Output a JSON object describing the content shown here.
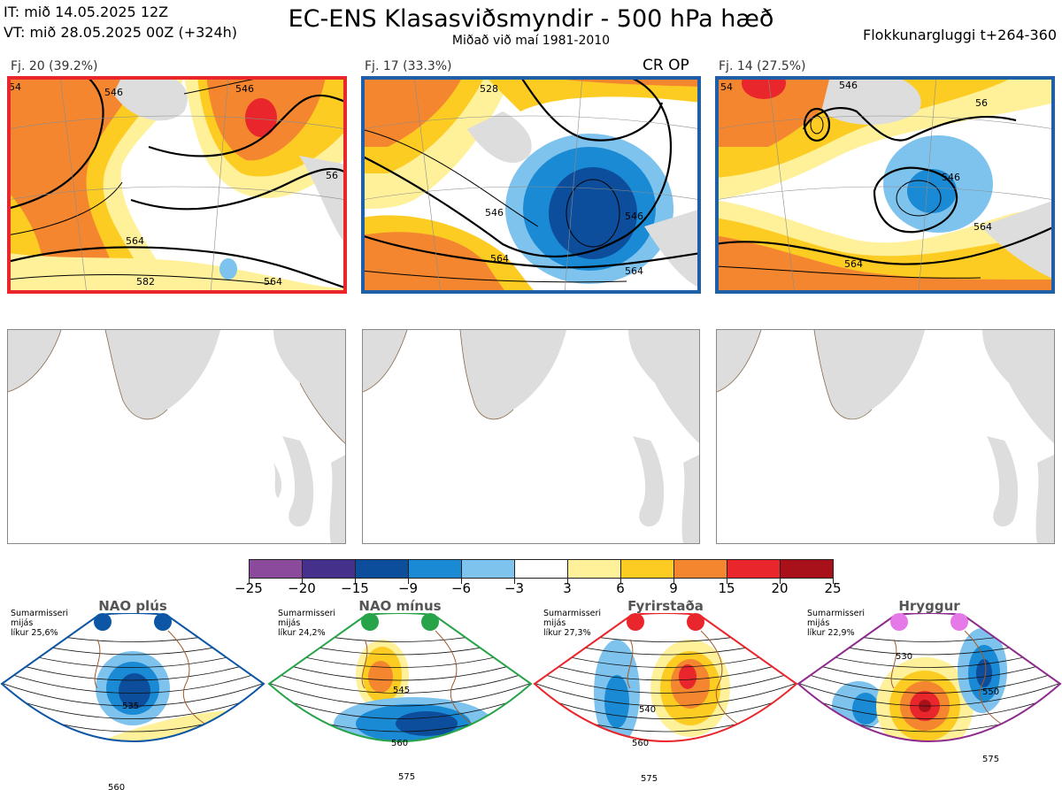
{
  "header": {
    "it_line": "IT: mið 14.05.2025 12Z",
    "vt_line": "VT: mið 28.05.2025 00Z  (+324h)",
    "title": "EC-ENS Klasasviðsmyndir - 500 hPa hæð",
    "subtitle": "Miðað við maí 1981-2010",
    "window": "Flokkunargluggi t+264-360"
  },
  "clusters": [
    {
      "label": "Fj. 20 (39.2%)",
      "frame_color": "#e8262b",
      "contours": [
        "546",
        "546",
        "564",
        "582",
        "564",
        "56",
        "54"
      ]
    },
    {
      "label": "Fj. 17 (33.3%)",
      "frame_color": "#1f5fa8",
      "tag": "CR OP",
      "contours": [
        "528",
        "546",
        "546",
        "564",
        "564"
      ]
    },
    {
      "label": "Fj. 14 (27.5%)",
      "frame_color": "#1f5fa8",
      "contours": [
        "546",
        "546",
        "564",
        "564",
        "54",
        "56"
      ]
    }
  ],
  "colorbar": {
    "ticks": [
      "−25",
      "−20",
      "−15",
      "−9",
      "−6",
      "−3",
      "3",
      "6",
      "9",
      "15",
      "20",
      "25"
    ],
    "colors": [
      "#8b4a9c",
      "#45318c",
      "#0c4e9c",
      "#1a8ad4",
      "#7ec3ee",
      "#ffffff",
      "#fff19a",
      "#fdcc23",
      "#f4862f",
      "#e8262b",
      "#a8111a"
    ]
  },
  "regimes": [
    {
      "title": "NAO plús",
      "info": [
        "Sumarmisseri",
        "mijás",
        "líkur 25,6%"
      ],
      "color": "#0d56a6",
      "dot_color": "#0d56a6",
      "contours": [
        "535",
        "560"
      ]
    },
    {
      "title": "NAO mínus",
      "info": [
        "Sumarmisseri",
        "mijás",
        "líkur 24,2%"
      ],
      "color": "#27a34a",
      "dot_color": "#27a34a",
      "contours": [
        "545",
        "560",
        "575"
      ]
    },
    {
      "title": "Fyrirstaða",
      "info": [
        "Sumarmisseri",
        "mijás",
        "líkur 27,3%"
      ],
      "color": "#e8262b",
      "dot_color": "#e8262b",
      "contours": [
        "540",
        "560",
        "575"
      ]
    },
    {
      "title": "Hryggur",
      "info": [
        "Sumarmisseri",
        "mijás",
        "líkur 22,9%"
      ],
      "color": "#8e2c8e",
      "dot_color": "#e579e8",
      "contours": [
        "530",
        "550",
        "575"
      ]
    }
  ]
}
